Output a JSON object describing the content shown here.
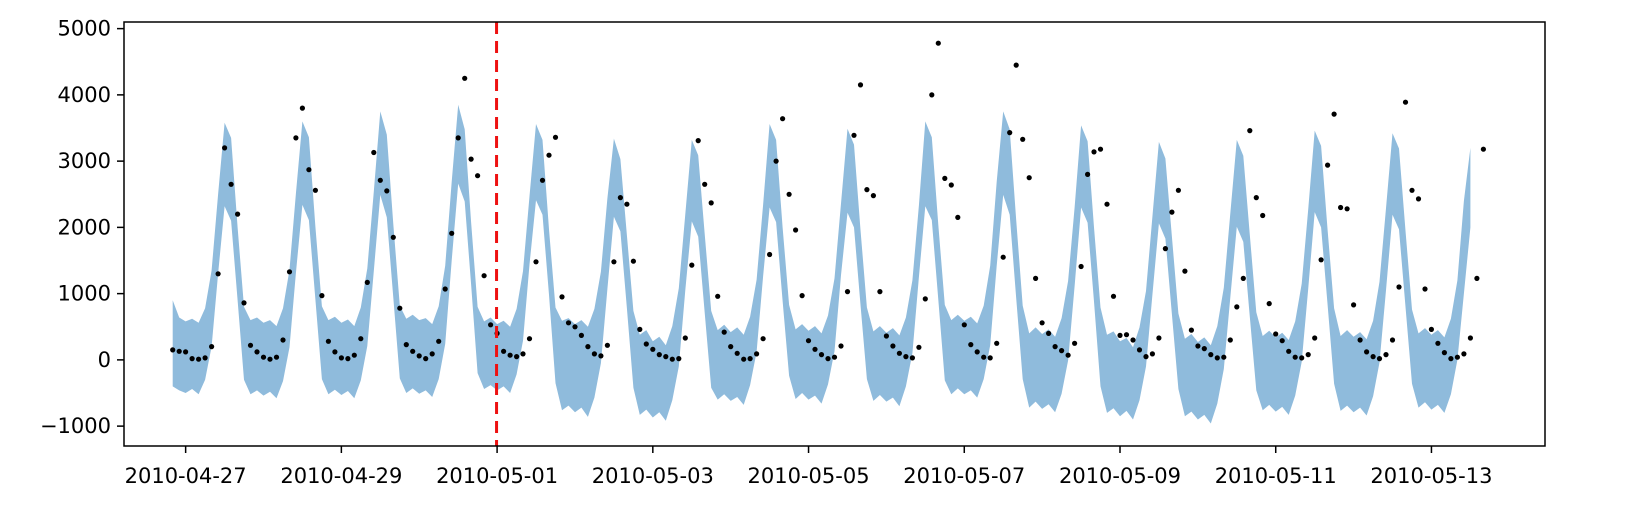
{
  "chart_data": {
    "type": "scatter",
    "title": "",
    "xlabel": "",
    "ylabel": "",
    "xlim": [
      "2010-04-26 05:00",
      "2010-05-14 11:00"
    ],
    "ylim": [
      -1300,
      5100
    ],
    "grid": false,
    "x_ticks": [
      "2010-04-27",
      "2010-04-29",
      "2010-05-01",
      "2010-05-03",
      "2010-05-05",
      "2010-05-07",
      "2010-05-09",
      "2010-05-11",
      "2010-05-13"
    ],
    "y_ticks": [
      -1000,
      0,
      1000,
      2000,
      3000,
      4000,
      5000
    ],
    "y_tick_labels": [
      "−1000",
      "0",
      "1000",
      "2000",
      "3000",
      "4000",
      "5000"
    ],
    "cutoff_date": "2010-04-30 23:50",
    "colors": {
      "band": "#8fbbdc",
      "points": "#000000",
      "cutoff_line": "#ee1111"
    },
    "series": [
      {
        "type": "band",
        "x_start": "2010-04-26 20:00",
        "x_end": "2010-05-14 00:00",
        "x_step_hours": 2,
        "upper": [
          900,
          640,
          580,
          620,
          560,
          780,
          1350,
          2500,
          3580,
          3350,
          2000,
          800,
          600,
          640,
          560,
          600,
          510,
          780,
          1360,
          2510,
          3600,
          3360,
          2010,
          810,
          600,
          650,
          560,
          610,
          510,
          790,
          1380,
          2540,
          3750,
          3400,
          2050,
          820,
          620,
          680,
          600,
          630,
          540,
          810,
          1420,
          2690,
          3850,
          3480,
          2080,
          800,
          580,
          640,
          540,
          590,
          500,
          770,
          1340,
          2470,
          3560,
          3320,
          1970,
          790,
          590,
          630,
          540,
          600,
          500,
          770,
          1330,
          2440,
          3340,
          3030,
          1880,
          740,
          380,
          450,
          280,
          350,
          220,
          510,
          1080,
          2200,
          3320,
          3090,
          1900,
          740,
          450,
          530,
          420,
          490,
          380,
          650,
          1210,
          2340,
          3560,
          3320,
          2000,
          830,
          460,
          540,
          440,
          510,
          400,
          670,
          1230,
          2360,
          3490,
          3250,
          1960,
          790,
          430,
          510,
          410,
          480,
          370,
          640,
          1200,
          2330,
          3600,
          3360,
          2040,
          830,
          600,
          680,
          590,
          650,
          550,
          820,
          1420,
          2690,
          3750,
          3480,
          2110,
          820,
          400,
          490,
          390,
          460,
          350,
          630,
          1190,
          2300,
          3540,
          3300,
          2000,
          790,
          380,
          430,
          280,
          330,
          190,
          490,
          1040,
          2160,
          3290,
          3040,
          1860,
          700,
          320,
          390,
          270,
          340,
          220,
          510,
          1090,
          2210,
          3320,
          3080,
          1890,
          720,
          360,
          440,
          340,
          410,
          300,
          580,
          1150,
          2270,
          3460,
          3230,
          1960,
          780,
          360,
          450,
          350,
          420,
          310,
          590,
          1180,
          2290,
          3420,
          3190,
          1950,
          760,
          400,
          480,
          380,
          450,
          340,
          620,
          1200,
          2400,
          3200
        ]
      },
      {
        "type": "band",
        "x_start": "2010-04-26 20:00",
        "x_end": "2010-05-14 00:00",
        "x_step_hours": 2,
        "lower": [
          -400,
          -460,
          -500,
          -440,
          -520,
          -300,
          200,
          1300,
          2320,
          2100,
          900,
          -300,
          -520,
          -460,
          -540,
          -480,
          -580,
          -320,
          190,
          1310,
          2340,
          2110,
          910,
          -290,
          -520,
          -450,
          -530,
          -470,
          -580,
          -310,
          210,
          1340,
          2490,
          2150,
          940,
          -280,
          -500,
          -430,
          -510,
          -460,
          -560,
          -290,
          240,
          1500,
          2660,
          2390,
          1140,
          -200,
          -440,
          -380,
          -460,
          -400,
          -500,
          -220,
          290,
          1440,
          2410,
          2190,
          980,
          -350,
          -760,
          -690,
          -790,
          -720,
          -860,
          -570,
          -50,
          1070,
          2160,
          1940,
          780,
          -420,
          -830,
          -750,
          -870,
          -790,
          -920,
          -610,
          -100,
          1050,
          2090,
          1860,
          710,
          -420,
          -600,
          -520,
          -620,
          -560,
          -680,
          -380,
          120,
          1260,
          2300,
          2080,
          890,
          -240,
          -590,
          -500,
          -600,
          -540,
          -660,
          -370,
          130,
          1280,
          2220,
          2000,
          830,
          -290,
          -620,
          -530,
          -630,
          -570,
          -700,
          -400,
          100,
          1250,
          2320,
          2110,
          910,
          -310,
          -520,
          -430,
          -520,
          -460,
          -570,
          -290,
          220,
          1420,
          2490,
          2190,
          930,
          -290,
          -720,
          -630,
          -740,
          -670,
          -790,
          -510,
          -10,
          1110,
          2300,
          2070,
          880,
          -400,
          -800,
          -730,
          -850,
          -770,
          -900,
          -610,
          -100,
          980,
          2060,
          1830,
          690,
          -440,
          -850,
          -780,
          -900,
          -830,
          -960,
          -660,
          -140,
          940,
          2010,
          1780,
          650,
          -460,
          -760,
          -680,
          -780,
          -710,
          -830,
          -540,
          -30,
          1070,
          2230,
          2000,
          830,
          -360,
          -770,
          -690,
          -790,
          -720,
          -840,
          -550,
          -40,
          1050,
          2190,
          1970,
          800,
          -360,
          -720,
          -640,
          -750,
          -680,
          -800,
          -520,
          0,
          1000,
          2000
        ]
      },
      {
        "type": "scatter",
        "x_start": "2010-04-26 20:00",
        "x_step_hours": 2,
        "y": [
          150,
          130,
          120,
          20,
          10,
          30,
          200,
          1300,
          3200,
          2650,
          2200,
          860,
          220,
          120,
          40,
          10,
          40,
          300,
          1330,
          3350,
          3800,
          2870,
          2560,
          970,
          280,
          120,
          30,
          20,
          70,
          320,
          1170,
          3130,
          2710,
          2550,
          1850,
          780,
          230,
          130,
          60,
          20,
          90,
          280,
          1070,
          1910,
          3350,
          4250,
          3030,
          2780,
          1270,
          530,
          400,
          130,
          70,
          50,
          90,
          320,
          1480,
          2710,
          3090,
          3360,
          950,
          560,
          500,
          370,
          200,
          90,
          60,
          220,
          1480,
          2450,
          2350,
          1490,
          460,
          240,
          160,
          80,
          50,
          10,
          20,
          330,
          1430,
          3310,
          2650,
          2370,
          960,
          420,
          200,
          100,
          10,
          20,
          90,
          320,
          1590,
          3000,
          3640,
          2500,
          1960,
          970,
          290,
          160,
          80,
          20,
          40,
          210,
          1030,
          3390,
          4150,
          2570,
          2480,
          1030,
          360,
          210,
          100,
          50,
          30,
          190,
          920,
          4000,
          4780,
          2740,
          2640,
          2150,
          530,
          230,
          120,
          40,
          30,
          250,
          1550,
          3430,
          4450,
          3330,
          2750,
          1230,
          560,
          400,
          200,
          140,
          70,
          250,
          1410,
          2800,
          3140,
          3180,
          2350,
          960,
          370,
          380,
          300,
          150,
          50,
          90,
          330,
          1680,
          2230,
          2560,
          1340,
          450,
          210,
          170,
          80,
          30,
          40,
          300,
          800,
          1230,
          3460,
          2450,
          2180,
          850,
          390,
          290,
          130,
          40,
          30,
          80,
          330,
          1510,
          2940,
          3710,
          2300,
          2280,
          830,
          300,
          120,
          50,
          20,
          80,
          300,
          1100,
          3890,
          2560,
          2430,
          1070,
          460,
          250,
          110,
          20,
          40,
          90,
          330,
          1230,
          3180
        ]
      }
    ]
  }
}
